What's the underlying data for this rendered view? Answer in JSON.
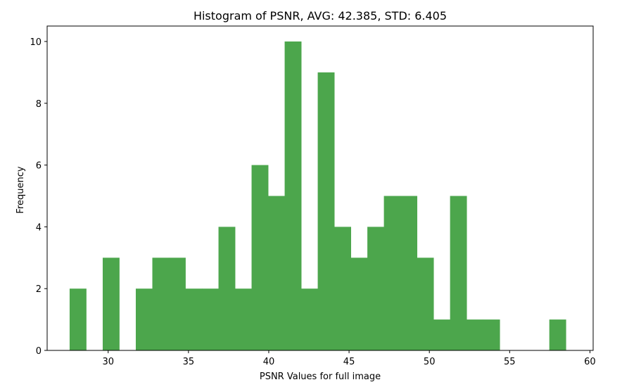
{
  "chart_data": {
    "type": "bar",
    "title": "Histogram of PSNR, AVG: 42.385, STD: 6.405",
    "xlabel": "PSNR Values for full image",
    "ylabel": "Frequency",
    "xlim": [
      26.2,
      60.2
    ],
    "ylim": [
      0,
      10.5
    ],
    "x_ticks": [
      30,
      35,
      40,
      45,
      50,
      55,
      60
    ],
    "y_ticks": [
      0,
      2,
      4,
      6,
      8,
      10
    ],
    "bar_color": "#4ca64c",
    "bin_edges": [
      27.6,
      28.63,
      29.66,
      30.69,
      31.72,
      32.75,
      33.78,
      34.81,
      35.84,
      36.87,
      37.9,
      38.93,
      39.96,
      40.99,
      42.02,
      43.05,
      44.08,
      45.11,
      46.14,
      47.17,
      48.2,
      49.23,
      50.26,
      51.29,
      52.32,
      53.35,
      54.38,
      55.41,
      56.44,
      57.47,
      58.5
    ],
    "values": [
      2,
      0,
      3,
      0,
      2,
      3,
      3,
      2,
      2,
      4,
      2,
      6,
      5,
      10,
      2,
      9,
      4,
      3,
      4,
      5,
      5,
      3,
      1,
      5,
      1,
      1,
      0,
      0,
      0,
      1
    ]
  }
}
